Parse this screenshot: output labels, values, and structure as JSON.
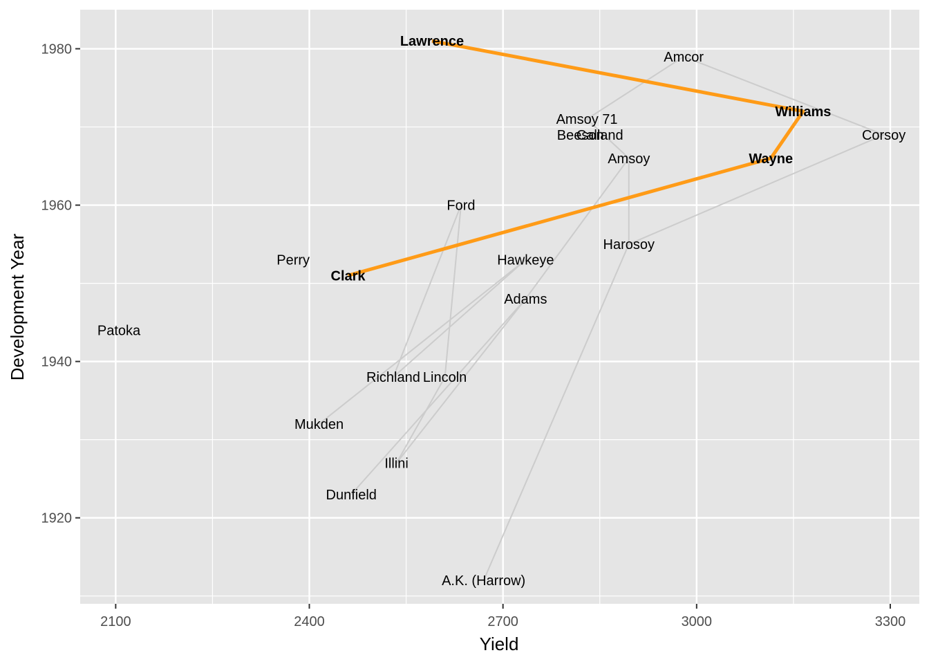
{
  "chart_data": {
    "type": "scatter",
    "title": "",
    "xlabel": "Yield",
    "ylabel": "Development Year",
    "xlim": [
      2045,
      3345
    ],
    "ylim": [
      1909,
      1985
    ],
    "x_ticks": [
      2100,
      2400,
      2700,
      3000,
      3300
    ],
    "y_ticks": [
      1920,
      1940,
      1960,
      1980
    ],
    "grid": true,
    "colors": {
      "panel_background": "#e5e5e5",
      "grid": "#ffffff",
      "lineage_line": "#cccccc",
      "highlight_line": "#ff9b17"
    },
    "points": [
      {
        "name": "Lawrence",
        "x": 2590,
        "y": 1981,
        "highlight": true
      },
      {
        "name": "Amcor",
        "x": 2980,
        "y": 1979,
        "highlight": false
      },
      {
        "name": "Williams",
        "x": 3165,
        "y": 1972,
        "highlight": true
      },
      {
        "name": "Amsoy 71",
        "x": 2830,
        "y": 1971,
        "highlight": false
      },
      {
        "name": "Beeson",
        "x": 2820,
        "y": 1969,
        "highlight": false
      },
      {
        "name": "Calland",
        "x": 2850,
        "y": 1969,
        "highlight": false
      },
      {
        "name": "Corsoy",
        "x": 3290,
        "y": 1969,
        "highlight": false
      },
      {
        "name": "Amsoy",
        "x": 2895,
        "y": 1966,
        "highlight": false
      },
      {
        "name": "Wayne",
        "x": 3115,
        "y": 1966,
        "highlight": true
      },
      {
        "name": "Ford",
        "x": 2635,
        "y": 1960,
        "highlight": false
      },
      {
        "name": "Harosoy",
        "x": 2895,
        "y": 1955,
        "highlight": false
      },
      {
        "name": "Perry",
        "x": 2375,
        "y": 1953,
        "highlight": false
      },
      {
        "name": "Hawkeye",
        "x": 2735,
        "y": 1953,
        "highlight": false
      },
      {
        "name": "Clark",
        "x": 2460,
        "y": 1951,
        "highlight": true
      },
      {
        "name": "Adams",
        "x": 2735,
        "y": 1948,
        "highlight": false
      },
      {
        "name": "Patoka",
        "x": 2105,
        "y": 1944,
        "highlight": false
      },
      {
        "name": "Richland",
        "x": 2530,
        "y": 1938,
        "highlight": false
      },
      {
        "name": "Lincoln",
        "x": 2610,
        "y": 1938,
        "highlight": false
      },
      {
        "name": "Mukden",
        "x": 2415,
        "y": 1932,
        "highlight": false
      },
      {
        "name": "Illini",
        "x": 2535,
        "y": 1927,
        "highlight": false
      },
      {
        "name": "Dunfield",
        "x": 2465,
        "y": 1923,
        "highlight": false
      },
      {
        "name": "A.K. (Harrow)",
        "x": 2670,
        "y": 1912,
        "highlight": false
      }
    ],
    "lineage_edges": [
      [
        "Amcor",
        "Amsoy 71"
      ],
      [
        "Amcor",
        "Corsoy"
      ],
      [
        "Amsoy 71",
        "Amsoy"
      ],
      [
        "Amsoy",
        "Harosoy"
      ],
      [
        "Amsoy",
        "Adams"
      ],
      [
        "Harosoy",
        "Corsoy"
      ],
      [
        "Harosoy",
        "A.K. (Harrow)"
      ],
      [
        "Ford",
        "Richland"
      ],
      [
        "Ford",
        "Lincoln"
      ],
      [
        "Hawkeye",
        "Richland"
      ],
      [
        "Hawkeye",
        "Mukden"
      ],
      [
        "Adams",
        "Dunfield"
      ],
      [
        "Adams",
        "Illini"
      ],
      [
        "Lincoln",
        "Illini"
      ]
    ],
    "highlight_path": [
      "Lawrence",
      "Williams",
      "Wayne",
      "Clark"
    ]
  }
}
